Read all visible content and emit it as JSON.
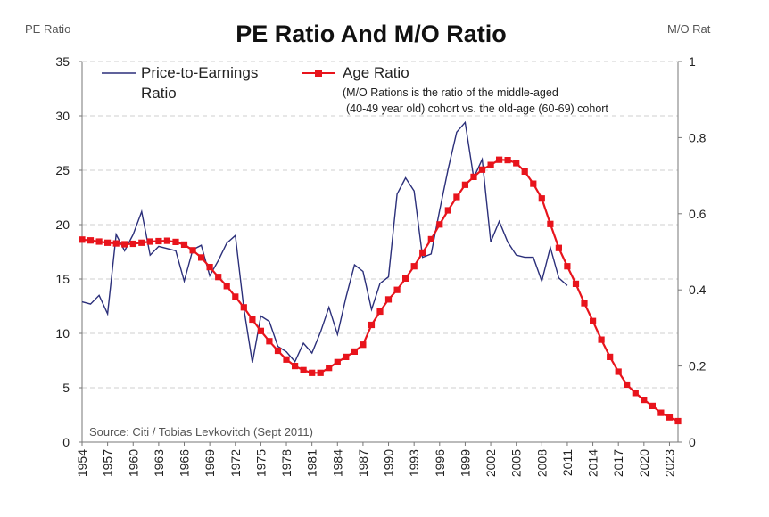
{
  "chart_data": {
    "type": "line",
    "title": "PE Ratio And M/O Ratio",
    "ylabel_left": "PE Ratio",
    "ylabel_right": "M/O Rat",
    "source": "Source: Citi / Tobias Levkovitch (Sept 2011)",
    "legend": {
      "pe_line1": "Price-to-Earnings",
      "pe_line2": "Ratio",
      "age_label": "Age Ratio",
      "note_line1": "(M/O Rations is the ratio of the middle-aged",
      "note_line2": "(40-49 year old) cohort vs. the old-age (60-69) cohort"
    },
    "colors": {
      "pe": "#2b2f7a",
      "age": "#e8141c"
    },
    "x_tick_labels": [
      "1954",
      "1957",
      "1960",
      "1963",
      "1966",
      "1969",
      "1972",
      "1975",
      "1978",
      "1981",
      "1984",
      "1987",
      "1990",
      "1993",
      "1996",
      "1999",
      "2002",
      "2005",
      "2008",
      "2011",
      "2014",
      "2017",
      "2020",
      "2023"
    ],
    "xlim": [
      1954,
      2024
    ],
    "ylim_left": [
      0,
      35
    ],
    "ylim_right": [
      0,
      1
    ],
    "y_left_ticks": [
      0,
      5,
      10,
      15,
      20,
      25,
      30,
      35
    ],
    "y_right_ticks": [
      0,
      0.2,
      0.4,
      0.6,
      0.8,
      1
    ],
    "y_right_tick_labels": [
      "0",
      "0.2",
      "0.4",
      "0.6",
      "0.8",
      "1"
    ],
    "grid": true,
    "legend_position": "top-left",
    "series": [
      {
        "name": "Price-to-Earnings Ratio",
        "axis": "left",
        "x": [
          1954,
          1955,
          1956,
          1957,
          1958,
          1959,
          1960,
          1961,
          1962,
          1963,
          1964,
          1965,
          1966,
          1967,
          1968,
          1969,
          1970,
          1971,
          1972,
          1973,
          1974,
          1975,
          1976,
          1977,
          1978,
          1979,
          1980,
          1981,
          1982,
          1983,
          1984,
          1985,
          1986,
          1987,
          1988,
          1989,
          1990,
          1991,
          1992,
          1993,
          1994,
          1995,
          1996,
          1997,
          1998,
          1999,
          2000,
          2001,
          2002,
          2003,
          2004,
          2005,
          2006,
          2007,
          2008,
          2009,
          2010,
          2011
        ],
        "values": [
          12.9,
          12.7,
          13.5,
          11.8,
          19.1,
          17.6,
          19.1,
          21.2,
          17.2,
          18.0,
          17.8,
          17.6,
          14.8,
          17.7,
          18.1,
          15.3,
          16.7,
          18.3,
          19.0,
          12.3,
          7.3,
          11.6,
          11.1,
          8.8,
          8.3,
          7.4,
          9.1,
          8.2,
          10.1,
          12.4,
          9.9,
          13.3,
          16.3,
          15.7,
          12.2,
          14.6,
          15.2,
          22.8,
          24.3,
          23.1,
          17.0,
          17.3,
          21.3,
          25.1,
          28.5,
          29.4,
          24.3,
          26.0,
          18.4,
          20.3,
          18.4,
          17.2,
          17.0,
          17.0,
          14.8,
          17.9,
          15.1,
          14.4
        ]
      },
      {
        "name": "Age Ratio",
        "axis": "right",
        "x": [
          1954,
          1955,
          1956,
          1957,
          1958,
          1959,
          1960,
          1961,
          1962,
          1963,
          1964,
          1965,
          1966,
          1967,
          1968,
          1969,
          1970,
          1971,
          1972,
          1973,
          1974,
          1975,
          1976,
          1977,
          1978,
          1979,
          1980,
          1981,
          1982,
          1983,
          1984,
          1985,
          1986,
          1987,
          1988,
          1989,
          1990,
          1991,
          1992,
          1993,
          1994,
          1995,
          1996,
          1997,
          1998,
          1999,
          2000,
          2001,
          2002,
          2003,
          2004,
          2005,
          2006,
          2007,
          2008,
          2009,
          2010,
          2011,
          2012,
          2013,
          2014,
          2015,
          2016,
          2017,
          2018,
          2019,
          2020,
          2021,
          2022,
          2023,
          2024
        ],
        "values": [
          0.532,
          0.53,
          0.527,
          0.524,
          0.522,
          0.52,
          0.521,
          0.524,
          0.527,
          0.528,
          0.529,
          0.526,
          0.519,
          0.504,
          0.485,
          0.46,
          0.434,
          0.41,
          0.382,
          0.354,
          0.322,
          0.292,
          0.265,
          0.24,
          0.217,
          0.2,
          0.189,
          0.182,
          0.182,
          0.195,
          0.21,
          0.224,
          0.238,
          0.256,
          0.308,
          0.343,
          0.375,
          0.4,
          0.43,
          0.462,
          0.498,
          0.533,
          0.572,
          0.609,
          0.644,
          0.676,
          0.697,
          0.716,
          0.728,
          0.742,
          0.741,
          0.733,
          0.711,
          0.679,
          0.64,
          0.573,
          0.51,
          0.462,
          0.416,
          0.365,
          0.318,
          0.269,
          0.224,
          0.185,
          0.151,
          0.129,
          0.111,
          0.095,
          0.077,
          0.065,
          0.055
        ]
      }
    ]
  }
}
